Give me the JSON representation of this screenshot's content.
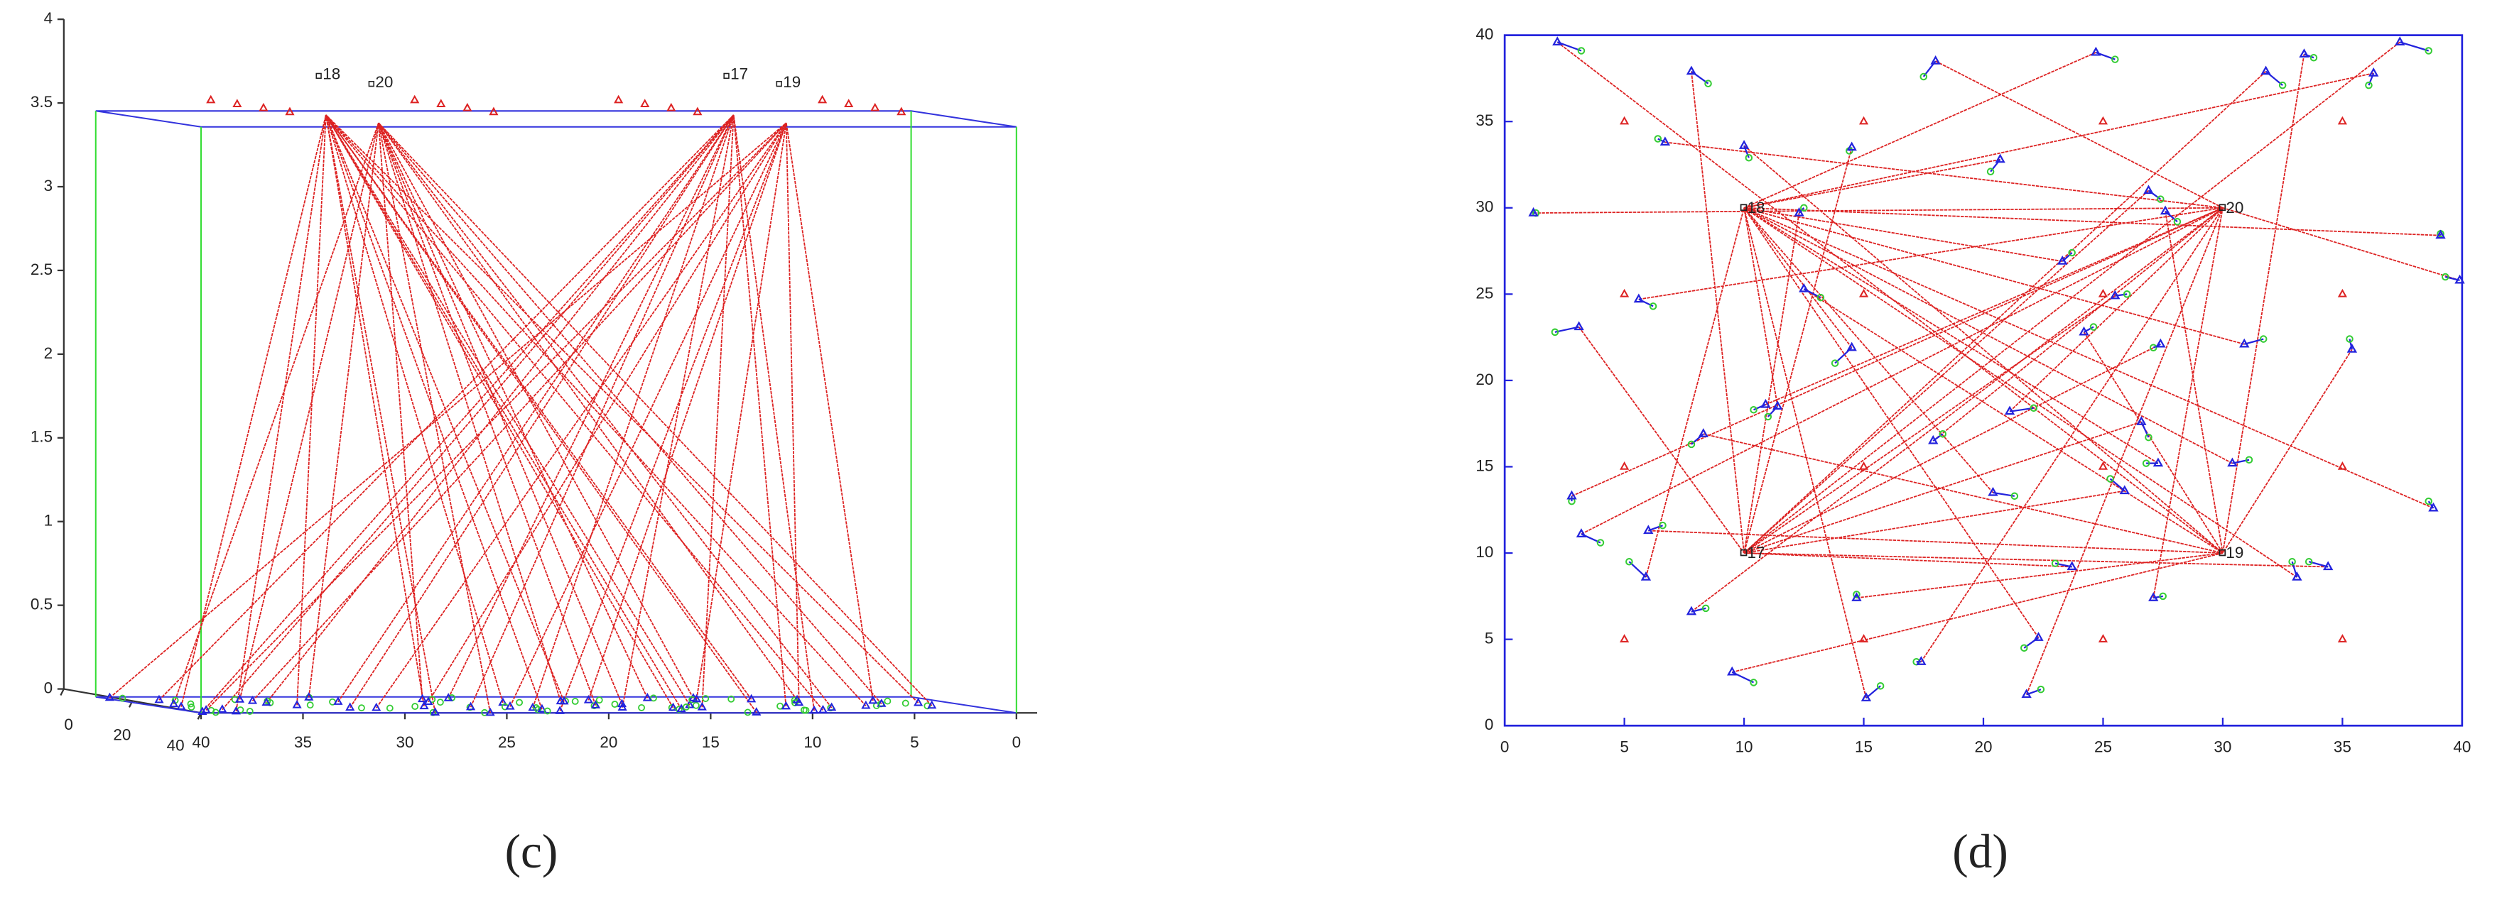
{
  "chart_data": [
    {
      "type": "scatter3d",
      "label": "(c)",
      "xlim": [
        40,
        0
      ],
      "xticks": [
        40,
        35,
        30,
        25,
        20,
        15,
        10,
        5,
        0
      ],
      "ylim": [
        0,
        40
      ],
      "yticks": [
        0,
        20,
        40
      ],
      "zlim": [
        0,
        4
      ],
      "zticks": [
        0,
        0.5,
        1,
        1.5,
        2,
        2.5,
        3,
        3.5,
        4
      ],
      "plane_height": 3.5
    },
    {
      "type": "scatter",
      "label": "(d)",
      "xlim": [
        0,
        40
      ],
      "xticks": [
        0,
        5,
        10,
        15,
        20,
        25,
        30,
        35,
        40
      ],
      "ylim": [
        0,
        40
      ],
      "yticks": [
        0,
        5,
        10,
        15,
        20,
        25,
        30,
        35,
        40
      ]
    }
  ],
  "network": {
    "sinks": {
      "names": [
        "18",
        "20",
        "17",
        "19"
      ],
      "x": [
        10,
        30,
        10,
        30
      ],
      "y": [
        30,
        30,
        10,
        10
      ]
    },
    "anchors": {
      "x": [
        5,
        15,
        25,
        35,
        5,
        15,
        25,
        35,
        5,
        15,
        25,
        35,
        5,
        15,
        25,
        35
      ],
      "y": [
        35,
        35,
        35,
        35,
        25,
        25,
        25,
        25,
        15,
        15,
        15,
        15,
        5,
        5,
        5,
        5
      ]
    },
    "sensors": {
      "x": [
        2.2,
        7.8,
        18,
        24.7,
        31.8,
        33.4,
        37.4,
        36.3,
        6.7,
        10,
        14.5,
        20.7,
        1.2,
        12.3,
        27.6,
        26.9,
        39.1,
        23.3,
        25.5,
        5.6,
        12.5,
        39.9,
        3.1,
        14.5,
        24.2,
        27.4,
        30.9,
        35.4,
        10.9,
        11.4,
        21.1,
        8.3,
        17.9,
        26.6,
        27.3,
        30.4,
        2.8,
        20.4,
        25.9,
        38.8,
        3.2,
        6,
        7.8,
        5.9,
        23.7,
        33.1,
        34.4,
        27.1,
        14.7,
        17.4,
        22.3,
        9.5,
        15.1,
        21.8
      ],
      "y": [
        39.6,
        37.9,
        38.5,
        39,
        37.9,
        38.9,
        39.6,
        37.8,
        33.8,
        33.6,
        33.5,
        32.8,
        29.7,
        29.7,
        29.8,
        31,
        28.4,
        26.9,
        24.9,
        24.7,
        25.3,
        25.8,
        23.1,
        21.9,
        22.8,
        22.1,
        22.1,
        21.8,
        18.6,
        18.5,
        18.2,
        16.9,
        16.5,
        17.6,
        15.2,
        15.2,
        13.3,
        13.5,
        13.6,
        12.6,
        11.1,
        11.3,
        6.6,
        8.6,
        9.2,
        8.6,
        9.2,
        7.4,
        7.4,
        3.7,
        5.1,
        3.1,
        1.6,
        1.8
      ],
      "relay_x": [
        3.2,
        8.5,
        17.5,
        25.5,
        32.5,
        33.8,
        38.6,
        36.1,
        6.4,
        10.2,
        14.4,
        20.3,
        1.3,
        12.5,
        28.1,
        27.4,
        39.1,
        23.7,
        26,
        6.2,
        13.2,
        39.3,
        2.1,
        13.8,
        24.6,
        27.1,
        31.7,
        35.3,
        10.4,
        11,
        22.1,
        7.8,
        18.3,
        26.9,
        26.8,
        31.1,
        2.8,
        21.3,
        25.3,
        38.6,
        4,
        6.6,
        8.4,
        5.2,
        23,
        32.9,
        33.6,
        27.5,
        14.7,
        17.2,
        21.7,
        10.4,
        15.7,
        22.4
      ],
      "relay_y": [
        39.1,
        37.2,
        37.6,
        38.6,
        37.1,
        38.7,
        39.1,
        37.1,
        34,
        32.9,
        33.3,
        32.1,
        29.7,
        30,
        29.2,
        30.5,
        28.5,
        27.4,
        25,
        24.3,
        24.8,
        26,
        22.8,
        21,
        23.1,
        21.9,
        22.4,
        22.4,
        18.3,
        17.9,
        18.4,
        16.3,
        16.9,
        16.7,
        15.2,
        15.4,
        13,
        13.3,
        14.3,
        13,
        10.6,
        11.6,
        6.8,
        9.5,
        9.4,
        9.5,
        9.5,
        7.5,
        7.6,
        3.7,
        4.5,
        2.5,
        2.3,
        2.1
      ],
      "sink": [
        3,
        2,
        1,
        0,
        2,
        3,
        2,
        0,
        1,
        3,
        2,
        0,
        1,
        2,
        3,
        2,
        0,
        0,
        2,
        1,
        3,
        1,
        2,
        0,
        3,
        2,
        0,
        3,
        1,
        0,
        1,
        3,
        1,
        2,
        0,
        0,
        1,
        0,
        2,
        0,
        1,
        3,
        1,
        0,
        2,
        0,
        2,
        1,
        3,
        1,
        0,
        3,
        0,
        1
      ]
    }
  }
}
